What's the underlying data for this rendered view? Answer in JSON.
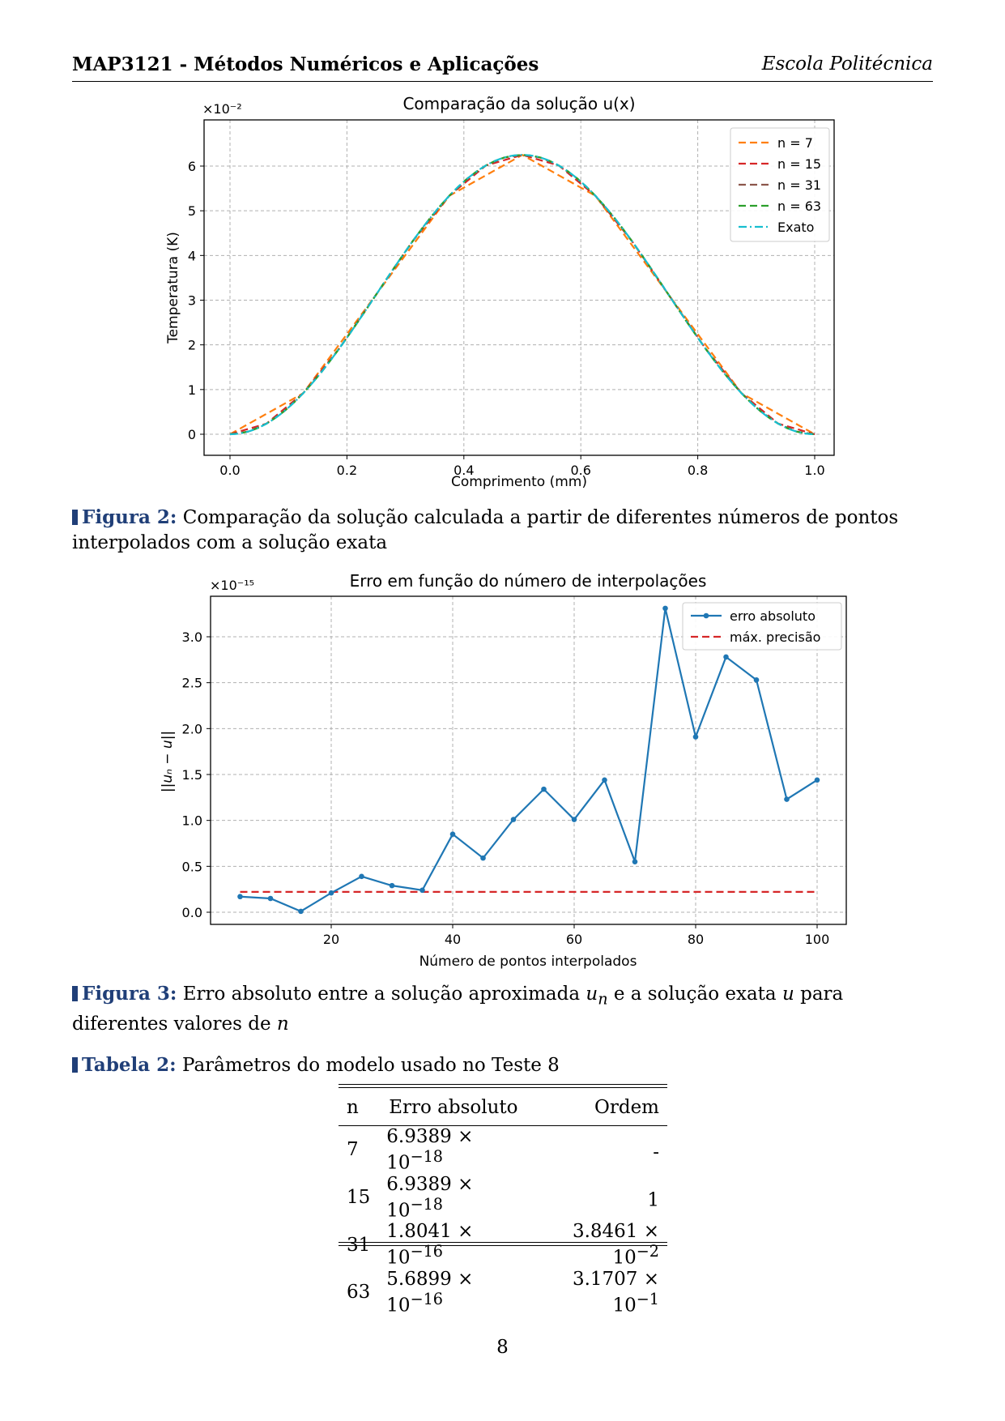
{
  "header": {
    "left": "MAP3121 - Métodos Numéricos e Aplicações",
    "right": "Escola Politécnica"
  },
  "fig2": {
    "chart_data": {
      "type": "line",
      "title": "Comparação da solução u(x)",
      "xlabel": "Comprimento (mm)",
      "ylabel": "Temperatura (K)",
      "y_multiplier": "×10⁻²",
      "xlim": [
        0.0,
        1.0
      ],
      "ylim": [
        0,
        6.2
      ],
      "xticks": [
        "0.0",
        "0.2",
        "0.4",
        "0.6",
        "0.8",
        "1.0"
      ],
      "yticks": [
        "0",
        "1",
        "2",
        "3",
        "4",
        "5",
        "6"
      ],
      "grid": true,
      "legend_position": "top-right",
      "series": [
        {
          "name": "n = 7",
          "n": 7,
          "color": "#ff7f0e",
          "style": "dashed"
        },
        {
          "name": "n = 15",
          "n": 15,
          "color": "#d62728",
          "style": "dashed"
        },
        {
          "name": "n = 31",
          "n": 31,
          "color": "#8c564b",
          "style": "dashed"
        },
        {
          "name": "n = 63",
          "n": 63,
          "color": "#2ca02c",
          "style": "dashed"
        },
        {
          "name": "Exato",
          "n": 0,
          "color": "#17becf",
          "style": "dashdot"
        }
      ],
      "peak_value": 6.25
    },
    "caption_label": "Figura 2:",
    "caption_text": "Comparação da solução calculada a partir de diferentes números de pontos interpolados com a solução exata"
  },
  "fig3": {
    "chart_data": {
      "type": "line",
      "title": "Erro em função do número de interpolações",
      "xlabel": "Número de pontos interpolados",
      "ylabel": "||uₙ − u||",
      "y_multiplier": "×10⁻¹⁵",
      "xlim": [
        2,
        105
      ],
      "ylim": [
        -0.15,
        3.45
      ],
      "xticks": [
        20,
        40,
        60,
        80,
        100
      ],
      "yticks": [
        "0.0",
        "0.5",
        "1.0",
        "1.5",
        "2.0",
        "2.5",
        "3.0"
      ],
      "grid": true,
      "legend_position": "top-right",
      "series": [
        {
          "name": "erro absoluto",
          "color": "#1f77b4",
          "x": [
            5,
            10,
            15,
            20,
            25,
            30,
            35,
            40,
            45,
            50,
            55,
            60,
            65,
            70,
            75,
            80,
            85,
            90,
            95,
            100
          ],
          "values": [
            0.17,
            0.15,
            0.01,
            0.21,
            0.39,
            0.29,
            0.24,
            0.85,
            0.59,
            1.01,
            1.34,
            1.01,
            1.44,
            0.55,
            3.31,
            1.91,
            2.78,
            2.53,
            1.23,
            1.44
          ]
        },
        {
          "name": "máx. precisão",
          "color": "#d62728",
          "style": "dashed",
          "x": [
            5,
            100
          ],
          "values": [
            0.222,
            0.222
          ]
        }
      ]
    },
    "caption_label": "Figura 3:",
    "caption_before": "Erro absoluto entre a solução aproximada",
    "caption_un": "u",
    "caption_un_sub": "n",
    "caption_mid": "e a solução exata",
    "caption_u": "u",
    "caption_after": "para diferentes valores de",
    "caption_n": "n"
  },
  "table2": {
    "caption_label": "Tabela 2:",
    "caption_text": "Parâmetros do modelo usado no Teste 8",
    "headers": [
      "n",
      "Erro absoluto",
      "Ordem"
    ],
    "rows": [
      {
        "n": "7",
        "erro_mant": "6.9389 × 10",
        "erro_exp": "−18",
        "ordem_mant": "-",
        "ordem_exp": ""
      },
      {
        "n": "15",
        "erro_mant": "6.9389 × 10",
        "erro_exp": "−18",
        "ordem_mant": "1",
        "ordem_exp": ""
      },
      {
        "n": "31",
        "erro_mant": "1.8041 × 10",
        "erro_exp": "−16",
        "ordem_mant": "3.8461 × 10",
        "ordem_exp": "−2"
      },
      {
        "n": "63",
        "erro_mant": "5.6899 × 10",
        "erro_exp": "−16",
        "ordem_mant": "3.1707 × 10",
        "ordem_exp": "−1"
      }
    ]
  },
  "page_number": "8"
}
